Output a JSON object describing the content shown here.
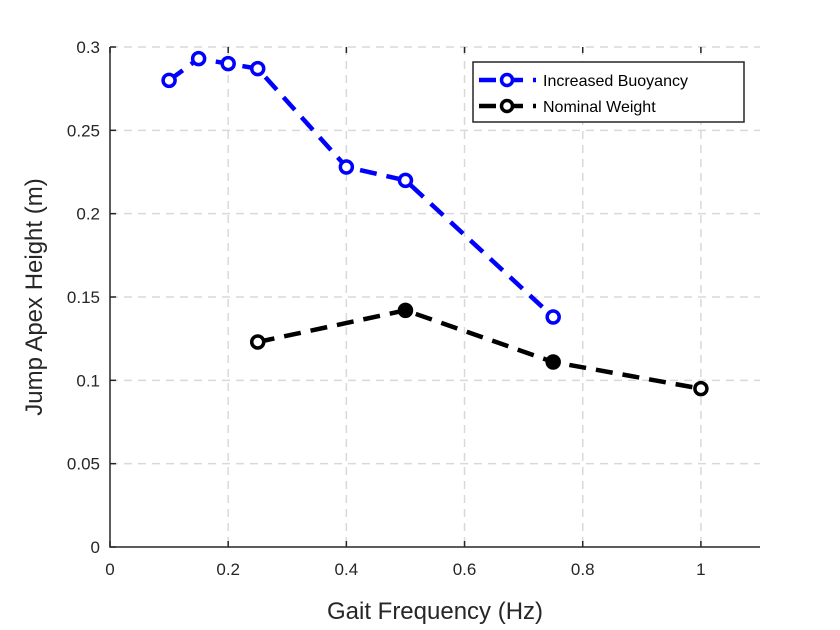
{
  "chart_data": {
    "type": "line",
    "xlabel": "Gait Frequency (Hz)",
    "ylabel": "Jump Apex Height (m)",
    "xlim": [
      0,
      1.1
    ],
    "ylim": [
      0,
      0.3
    ],
    "xticks": [
      0,
      0.2,
      0.4,
      0.6,
      0.8,
      1
    ],
    "xtick_labels": [
      "0",
      "0.2",
      "0.4",
      "0.6",
      "0.8",
      "1"
    ],
    "yticks": [
      0,
      0.05,
      0.1,
      0.15,
      0.2,
      0.25,
      0.3
    ],
    "ytick_labels": [
      "0",
      "0.05",
      "0.1",
      "0.15",
      "0.2",
      "0.25",
      "0.3"
    ],
    "grid": true,
    "legend_position": "top-right",
    "series": [
      {
        "name": "Increased Buoyancy",
        "color": "#0000ff",
        "line_style": "dashed",
        "marker": "open-circle",
        "points": [
          {
            "x": 0.1,
            "y": 0.28,
            "filled": false
          },
          {
            "x": 0.15,
            "y": 0.293,
            "filled": false
          },
          {
            "x": 0.2,
            "y": 0.29,
            "filled": false
          },
          {
            "x": 0.25,
            "y": 0.287,
            "filled": false
          },
          {
            "x": 0.4,
            "y": 0.228,
            "filled": false
          },
          {
            "x": 0.5,
            "y": 0.22,
            "filled": false
          },
          {
            "x": 0.75,
            "y": 0.138,
            "filled": false
          }
        ]
      },
      {
        "name": "Nominal Weight",
        "color": "#000000",
        "line_style": "dashed",
        "marker": "open-circle",
        "points": [
          {
            "x": 0.25,
            "y": 0.123,
            "filled": false
          },
          {
            "x": 0.5,
            "y": 0.142,
            "filled": true
          },
          {
            "x": 0.75,
            "y": 0.111,
            "filled": true
          },
          {
            "x": 1.0,
            "y": 0.095,
            "filled": false
          }
        ]
      }
    ]
  }
}
